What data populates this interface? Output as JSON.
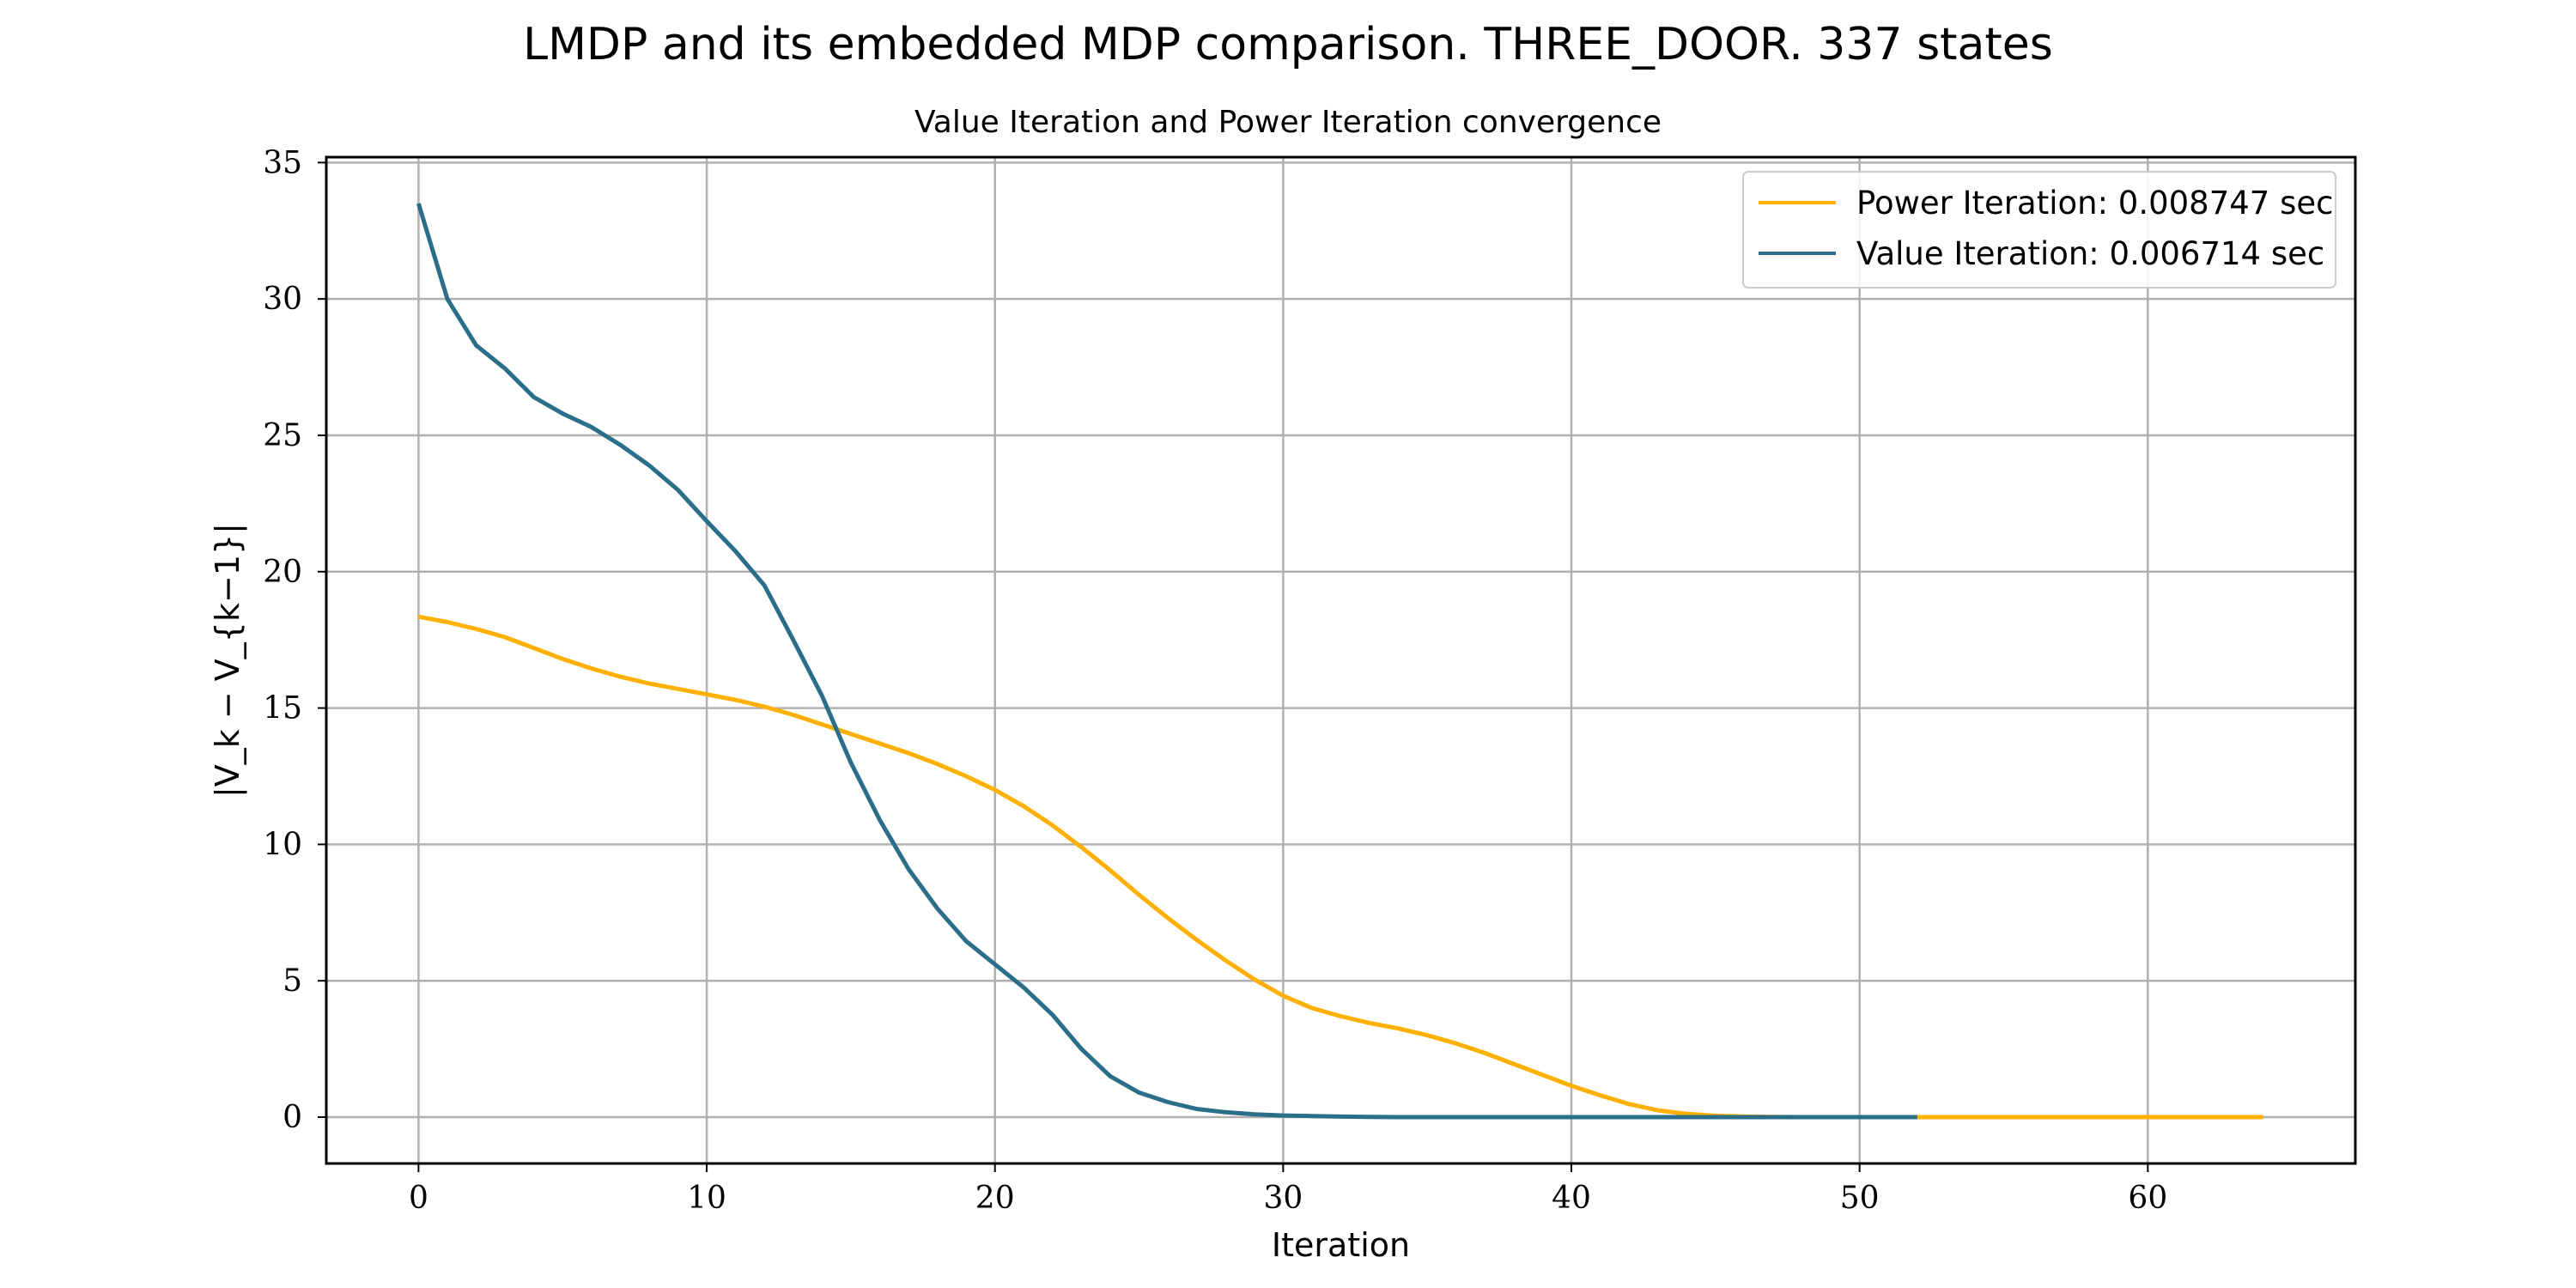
{
  "figure": {
    "title": "LMDP and its embedded MDP comparison. THREE_DOOR. 337 states"
  },
  "chart_data": {
    "type": "line",
    "title": "Value Iteration and Power Iteration convergence",
    "xlabel": "Iteration",
    "ylabel": "|V_k − V_{k−1}|",
    "xlim": [
      -3.2,
      67.2
    ],
    "ylim": [
      -1.7,
      35.2
    ],
    "xticks": [
      0,
      10,
      20,
      30,
      40,
      50,
      60
    ],
    "yticks": [
      0,
      5,
      10,
      15,
      20,
      25,
      30,
      35
    ],
    "grid": true,
    "legend_position": "top-right",
    "series": [
      {
        "name": "Power Iteration: 0.008747 sec",
        "color": "#FFB000",
        "x": [
          0,
          1,
          2,
          3,
          4,
          5,
          6,
          7,
          8,
          9,
          10,
          11,
          12,
          13,
          14,
          15,
          16,
          17,
          18,
          19,
          20,
          21,
          22,
          23,
          24,
          25,
          26,
          27,
          28,
          29,
          30,
          31,
          32,
          33,
          34,
          35,
          36,
          37,
          38,
          39,
          40,
          41,
          42,
          43,
          44,
          45,
          46,
          47,
          48,
          49,
          50,
          51,
          52,
          53,
          54,
          55,
          56,
          57,
          58,
          59,
          60,
          61,
          62,
          63,
          64
        ],
        "y": [
          18.35,
          18.15,
          17.9,
          17.6,
          17.2,
          16.8,
          16.45,
          16.15,
          15.9,
          15.7,
          15.5,
          15.3,
          15.05,
          14.75,
          14.4,
          14.05,
          13.7,
          13.35,
          12.95,
          12.5,
          12.0,
          11.4,
          10.7,
          9.9,
          9.05,
          8.15,
          7.3,
          6.5,
          5.75,
          5.05,
          4.45,
          4.0,
          3.7,
          3.45,
          3.25,
          3.0,
          2.7,
          2.35,
          1.95,
          1.55,
          1.15,
          0.8,
          0.48,
          0.25,
          0.12,
          0.05,
          0.02,
          0.01,
          0.0,
          0,
          0,
          0,
          0,
          0,
          0,
          0,
          0,
          0,
          0,
          0,
          0,
          0,
          0,
          0,
          0
        ]
      },
      {
        "name": "Value Iteration: 0.006714 sec",
        "color": "#2B6E8A",
        "x": [
          0,
          1,
          2,
          3,
          4,
          5,
          6,
          7,
          8,
          9,
          10,
          11,
          12,
          13,
          14,
          15,
          16,
          17,
          18,
          19,
          20,
          21,
          22,
          23,
          24,
          25,
          26,
          27,
          28,
          29,
          30,
          31,
          32,
          33,
          34,
          35,
          36,
          37,
          38,
          39,
          40,
          41,
          42,
          43,
          44,
          45,
          46,
          47,
          48,
          49,
          50,
          51,
          52
        ],
        "y": [
          33.5,
          30.0,
          28.3,
          27.45,
          26.4,
          25.8,
          25.3,
          24.65,
          23.9,
          23.0,
          21.85,
          20.75,
          19.5,
          17.5,
          15.45,
          13.0,
          10.9,
          9.1,
          7.65,
          6.45,
          5.6,
          4.75,
          3.75,
          2.5,
          1.5,
          0.9,
          0.55,
          0.3,
          0.18,
          0.1,
          0.06,
          0.04,
          0.02,
          0.01,
          0,
          0,
          0,
          0,
          0,
          0,
          0,
          0,
          0,
          0,
          0,
          0,
          0,
          0,
          0,
          0,
          0,
          0,
          0
        ]
      }
    ]
  }
}
